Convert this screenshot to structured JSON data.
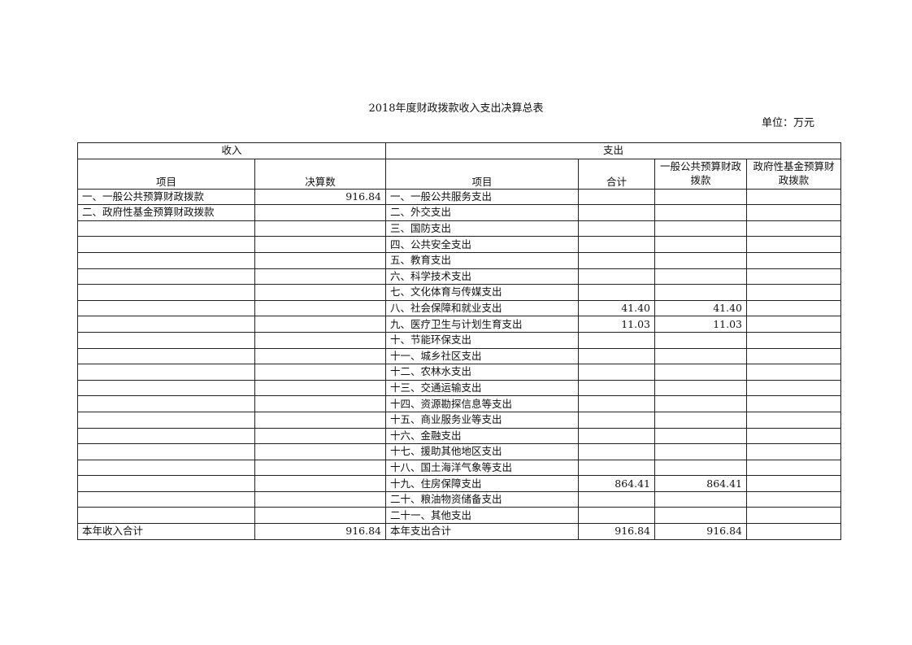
{
  "title": "2018年度财政拨款收入支出决算总表",
  "unit": "单位：万元",
  "header": {
    "income": "收入",
    "expense": "支出",
    "income_item": "项目",
    "income_amount": "决算数",
    "expense_item": "项目",
    "expense_total": "合计",
    "expense_general": "一般公共预算财政拨款",
    "expense_fund": "政府性基金预算财政拨款"
  },
  "rows": [
    {
      "income_item": "一、一般公共预算财政拨款",
      "income_amount": "916.84",
      "expense_item": "一、一般公共服务支出",
      "total": "",
      "general": "",
      "fund": ""
    },
    {
      "income_item": "二、政府性基金预算财政拨款",
      "income_amount": "",
      "expense_item": "二、外交支出",
      "total": "",
      "general": "",
      "fund": ""
    },
    {
      "income_item": "",
      "income_amount": "",
      "expense_item": "三、国防支出",
      "total": "",
      "general": "",
      "fund": ""
    },
    {
      "income_item": "",
      "income_amount": "",
      "expense_item": "四、公共安全支出",
      "total": "",
      "general": "",
      "fund": ""
    },
    {
      "income_item": "",
      "income_amount": "",
      "expense_item": "五、教育支出",
      "total": "",
      "general": "",
      "fund": ""
    },
    {
      "income_item": "",
      "income_amount": "",
      "expense_item": "六、科学技术支出",
      "total": "",
      "general": "",
      "fund": ""
    },
    {
      "income_item": "",
      "income_amount": "",
      "expense_item": "七、文化体育与传媒支出",
      "total": "",
      "general": "",
      "fund": ""
    },
    {
      "income_item": "",
      "income_amount": "",
      "expense_item": "八、社会保障和就业支出",
      "total": "41.40",
      "general": "41.40",
      "fund": ""
    },
    {
      "income_item": "",
      "income_amount": "",
      "expense_item": "九、医疗卫生与计划生育支出",
      "total": "11.03",
      "general": "11.03",
      "fund": ""
    },
    {
      "income_item": "",
      "income_amount": "",
      "expense_item": "十、节能环保支出",
      "total": "",
      "general": "",
      "fund": ""
    },
    {
      "income_item": "",
      "income_amount": "",
      "expense_item": "十一、城乡社区支出",
      "total": "",
      "general": "",
      "fund": ""
    },
    {
      "income_item": "",
      "income_amount": "",
      "expense_item": "十二、农林水支出",
      "total": "",
      "general": "",
      "fund": ""
    },
    {
      "income_item": "",
      "income_amount": "",
      "expense_item": "十三、交通运输支出",
      "total": "",
      "general": "",
      "fund": ""
    },
    {
      "income_item": "",
      "income_amount": "",
      "expense_item": "十四、资源勘探信息等支出",
      "total": "",
      "general": "",
      "fund": ""
    },
    {
      "income_item": "",
      "income_amount": "",
      "expense_item": "十五、商业服务业等支出",
      "total": "",
      "general": "",
      "fund": ""
    },
    {
      "income_item": "",
      "income_amount": "",
      "expense_item": "十六、金融支出",
      "total": "",
      "general": "",
      "fund": ""
    },
    {
      "income_item": "",
      "income_amount": "",
      "expense_item": "十七、援助其他地区支出",
      "total": "",
      "general": "",
      "fund": ""
    },
    {
      "income_item": "",
      "income_amount": "",
      "expense_item": "十八、国土海洋气象等支出",
      "total": "",
      "general": "",
      "fund": ""
    },
    {
      "income_item": "",
      "income_amount": "",
      "expense_item": "十九、住房保障支出",
      "total": "864.41",
      "general": "864.41",
      "fund": ""
    },
    {
      "income_item": "",
      "income_amount": "",
      "expense_item": "二十、粮油物资储备支出",
      "total": "",
      "general": "",
      "fund": ""
    },
    {
      "income_item": "",
      "income_amount": "",
      "expense_item": "二十一、其他支出",
      "total": "",
      "general": "",
      "fund": ""
    },
    {
      "income_item": "本年收入合计",
      "income_amount": "916.84",
      "expense_item": "本年支出合计",
      "total": "916.84",
      "general": "916.84",
      "fund": ""
    }
  ]
}
